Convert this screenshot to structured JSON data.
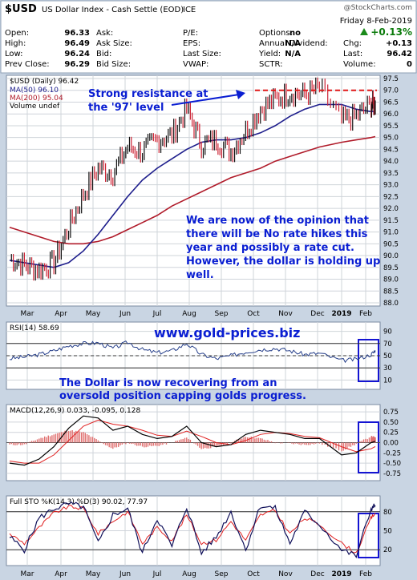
{
  "header": {
    "symbol": "$USD",
    "name": "US Dollar Index - Cash Settle (EOD)",
    "exchange": "ICE",
    "date": "Friday   8-Feb-2019",
    "source": "@StockCharts.com",
    "change_pct": "+0.13%",
    "quote_rows": [
      [
        "Open:",
        "96.33",
        "Ask:",
        "",
        "P/E:",
        "",
        "Options:",
        "no",
        "",
        ""
      ],
      [
        "High:",
        "96.49",
        "Ask Size:",
        "",
        "EPS:",
        "",
        "Annual Dividend:",
        "N/A",
        "Chg:",
        "+0.13"
      ],
      [
        "Low:",
        "96.24",
        "Bid:",
        "",
        "Last Size:",
        "",
        "Yield:",
        "N/A",
        "Last:",
        "96.42"
      ],
      [
        "Prev Close:",
        "96.29",
        "Bid Size:",
        "",
        "VWAP:",
        "",
        "SCTR:",
        "",
        "Volume:",
        "0"
      ]
    ]
  },
  "colors": {
    "price_up": "#111111",
    "price_down": "#cc2233",
    "ma50": "#1e1e8c",
    "ma200": "#b01b2a",
    "annotation_text": "#0a1ed2",
    "resistance_line": "#e01818",
    "highlight_box": "#1414d2",
    "grid": "#cfd4da",
    "panel_bg": "#ffffff",
    "page_bg": "#c9d5e3"
  },
  "chart_data": [
    {
      "type": "line",
      "title": "$USD (Daily) 96.42",
      "legend": [
        {
          "name": "$USD (Daily) 96.42"
        },
        {
          "name": "MA(50) 96.10"
        },
        {
          "name": "MA(200) 95.04"
        },
        {
          "name": "Volume undef"
        }
      ],
      "x_months": [
        "Mar",
        "Apr",
        "May",
        "Jun",
        "Jul",
        "Aug",
        "Sep",
        "Oct",
        "Nov",
        "Dec",
        "2019",
        "Feb"
      ],
      "y_ticks": [
        "97.5",
        "97.0",
        "96.5",
        "96.0",
        "95.5",
        "95.0",
        "94.5",
        "94.0",
        "93.5",
        "93.0",
        "92.5",
        "92.0",
        "91.5",
        "91.0",
        "90.5",
        "90.0",
        "89.5",
        "89.0",
        "88.5",
        "88.0"
      ],
      "ylim": [
        88.0,
        97.5
      ],
      "x": [
        "2018-02-26",
        "2018-03-12",
        "2018-03-26",
        "2018-04-09",
        "2018-04-23",
        "2018-05-07",
        "2018-05-21",
        "2018-06-04",
        "2018-06-18",
        "2018-07-02",
        "2018-07-16",
        "2018-07-30",
        "2018-08-13",
        "2018-08-27",
        "2018-09-10",
        "2018-09-24",
        "2018-10-08",
        "2018-10-22",
        "2018-11-05",
        "2018-11-19",
        "2018-12-03",
        "2018-12-17",
        "2019-01-07",
        "2019-01-21",
        "2019-02-04",
        "2019-02-08"
      ],
      "series": [
        {
          "name": "$USD (Daily) 96.42",
          "values": [
            89.9,
            89.6,
            89.4,
            89.7,
            91.2,
            92.6,
            93.7,
            93.5,
            94.6,
            94.4,
            94.9,
            95.1,
            96.2,
            94.7,
            94.9,
            94.4,
            95.3,
            96.2,
            96.6,
            96.9,
            96.8,
            97.1,
            95.7,
            95.9,
            96.4,
            96.42
          ]
        },
        {
          "name": "MA(50) 96.10",
          "values": [
            89.8,
            89.7,
            89.6,
            89.5,
            89.7,
            90.2,
            90.9,
            91.7,
            92.5,
            93.2,
            93.7,
            94.1,
            94.5,
            94.8,
            94.9,
            94.9,
            95.0,
            95.2,
            95.5,
            95.9,
            96.2,
            96.4,
            96.4,
            96.2,
            96.1,
            96.1
          ]
        },
        {
          "name": "MA(200) 95.04",
          "values": [
            91.2,
            91.0,
            90.8,
            90.6,
            90.5,
            90.5,
            90.6,
            90.8,
            91.1,
            91.4,
            91.7,
            92.1,
            92.4,
            92.7,
            93.0,
            93.3,
            93.5,
            93.7,
            94.0,
            94.2,
            94.4,
            94.6,
            94.8,
            94.9,
            95.0,
            95.04
          ]
        }
      ],
      "annotations": [
        "Strong resistance at",
        "the '97' level",
        "We are now of the opinion that",
        "there will be No rate hikes this",
        "year and possibly a rate cut.",
        "However, the dollar is holding up",
        "well."
      ]
    },
    {
      "type": "line",
      "title": "RSI(14) 58.69",
      "y_ticks": [
        "90",
        "70",
        "50",
        "30",
        "10"
      ],
      "ylim": [
        0,
        100
      ],
      "x": [
        "2018-02-26",
        "2018-03-12",
        "2018-03-26",
        "2018-04-09",
        "2018-04-23",
        "2018-05-07",
        "2018-05-21",
        "2018-06-04",
        "2018-06-18",
        "2018-07-02",
        "2018-07-16",
        "2018-07-30",
        "2018-08-13",
        "2018-08-27",
        "2018-09-10",
        "2018-09-24",
        "2018-10-08",
        "2018-10-22",
        "2018-11-05",
        "2018-11-19",
        "2018-12-03",
        "2018-12-17",
        "2019-01-07",
        "2019-01-21",
        "2019-02-04",
        "2019-02-08"
      ],
      "series": [
        {
          "name": "RSI(14) 58.69",
          "values": [
            45,
            48,
            52,
            58,
            66,
            70,
            71,
            62,
            72,
            60,
            55,
            58,
            70,
            52,
            45,
            50,
            56,
            60,
            62,
            58,
            52,
            54,
            42,
            44,
            52,
            58.69
          ]
        }
      ],
      "annotations": [
        "www.gold-prices.biz",
        "The Dollar is now recovering from an",
        "oversold position capping golds progress."
      ]
    },
    {
      "type": "line",
      "title": "MACD(12,26,9) 0.033, -0.095, 0.128",
      "y_ticks": [
        "0.75",
        "0.50",
        "0.25",
        "0.00",
        "-0.25",
        "-0.50",
        "-0.75"
      ],
      "ylim": [
        -0.85,
        0.85
      ],
      "x": [
        "2018-02-26",
        "2018-03-12",
        "2018-03-26",
        "2018-04-09",
        "2018-04-23",
        "2018-05-07",
        "2018-05-21",
        "2018-06-04",
        "2018-06-18",
        "2018-07-02",
        "2018-07-16",
        "2018-07-30",
        "2018-08-13",
        "2018-08-27",
        "2018-09-10",
        "2018-09-24",
        "2018-10-08",
        "2018-10-22",
        "2018-11-05",
        "2018-11-19",
        "2018-12-03",
        "2018-12-17",
        "2019-01-07",
        "2019-01-21",
        "2019-02-04",
        "2019-02-08"
      ],
      "series": [
        {
          "name": "MACD",
          "values": [
            -0.5,
            -0.55,
            -0.4,
            -0.1,
            0.35,
            0.65,
            0.6,
            0.3,
            0.4,
            0.2,
            0.1,
            0.15,
            0.4,
            0.0,
            -0.1,
            -0.05,
            0.2,
            0.3,
            0.25,
            0.2,
            0.1,
            0.1,
            -0.3,
            -0.25,
            0.0,
            0.033
          ]
        },
        {
          "name": "Signal",
          "values": [
            -0.45,
            -0.5,
            -0.5,
            -0.3,
            0.05,
            0.4,
            0.55,
            0.45,
            0.4,
            0.3,
            0.18,
            0.15,
            0.28,
            0.15,
            0.0,
            -0.05,
            0.05,
            0.2,
            0.25,
            0.22,
            0.15,
            0.12,
            -0.1,
            -0.22,
            -0.15,
            -0.095
          ]
        },
        {
          "name": "Histogram",
          "values": [
            -0.05,
            -0.05,
            0.1,
            0.2,
            0.3,
            0.25,
            0.05,
            -0.15,
            0.0,
            -0.1,
            -0.08,
            0.0,
            0.12,
            -0.15,
            -0.1,
            0.0,
            0.15,
            0.1,
            0.0,
            -0.02,
            -0.05,
            -0.02,
            -0.2,
            -0.03,
            0.15,
            0.128
          ]
        }
      ]
    },
    {
      "type": "line",
      "title": "Full STO %K(14,3) %D(3) 90.02, 77.97",
      "y_ticks": [
        "80",
        "50",
        "20"
      ],
      "ylim": [
        0,
        100
      ],
      "x": [
        "2018-02-26",
        "2018-03-12",
        "2018-03-26",
        "2018-04-09",
        "2018-04-23",
        "2018-05-07",
        "2018-05-21",
        "2018-06-04",
        "2018-06-18",
        "2018-07-02",
        "2018-07-16",
        "2018-07-30",
        "2018-08-13",
        "2018-08-27",
        "2018-09-10",
        "2018-09-24",
        "2018-10-08",
        "2018-10-22",
        "2018-11-05",
        "2018-11-19",
        "2018-12-03",
        "2018-12-17",
        "2019-01-07",
        "2019-01-21",
        "2019-02-04",
        "2019-02-08"
      ],
      "series": [
        {
          "name": "%K",
          "values": [
            40,
            20,
            70,
            85,
            92,
            88,
            30,
            75,
            85,
            15,
            70,
            25,
            88,
            15,
            40,
            80,
            20,
            90,
            85,
            30,
            80,
            60,
            20,
            10,
            85,
            90.02
          ]
        },
        {
          "name": "%D",
          "values": [
            45,
            30,
            55,
            78,
            88,
            85,
            45,
            65,
            80,
            30,
            55,
            35,
            75,
            30,
            35,
            65,
            35,
            75,
            82,
            45,
            70,
            60,
            30,
            15,
            70,
            77.97
          ]
        }
      ],
      "x_months": [
        "Mar",
        "Apr",
        "May",
        "Jun",
        "Jul",
        "Aug",
        "Sep",
        "Oct",
        "Nov",
        "Dec",
        "2019",
        "Feb"
      ]
    }
  ]
}
